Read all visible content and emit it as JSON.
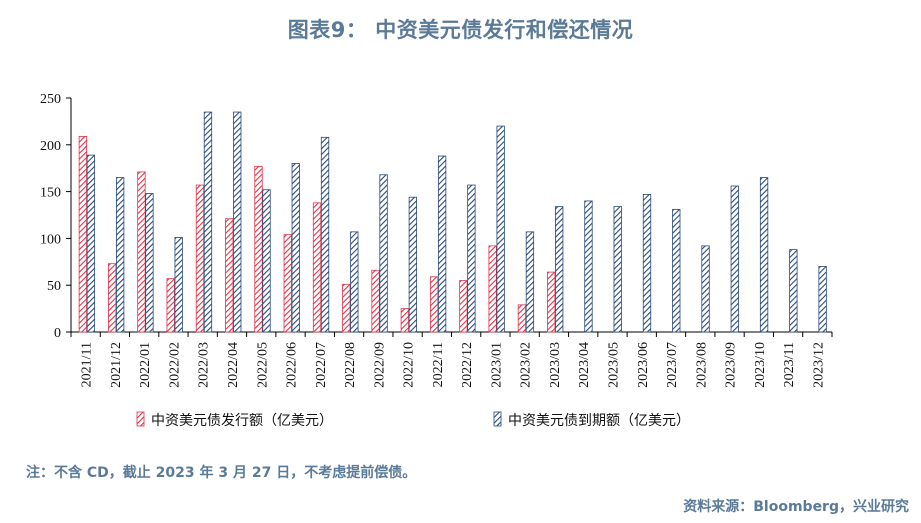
{
  "title": "图表9：  中资美元债发行和偿还情况",
  "note": "注：不含 CD，截止 2023 年 3 月 27 日，不考虑提前偿债。",
  "source": "资料来源：Bloomberg，兴业研究",
  "chart_data": {
    "type": "bar",
    "categories": [
      "2021/11",
      "2021/12",
      "2022/01",
      "2022/02",
      "2022/03",
      "2022/04",
      "2022/05",
      "2022/06",
      "2022/07",
      "2022/08",
      "2022/09",
      "2022/10",
      "2022/11",
      "2022/12",
      "2023/01",
      "2023/02",
      "2023/03",
      "2023/04",
      "2023/05",
      "2023/06",
      "2023/07",
      "2023/08",
      "2023/09",
      "2023/10",
      "2023/11",
      "2023/12"
    ],
    "series": [
      {
        "name": "中资美元债发行额（亿美元）",
        "color": "#e0334a",
        "values": [
          209,
          73,
          171,
          57,
          157,
          121,
          177,
          104,
          138,
          51,
          66,
          25,
          59,
          55,
          92,
          29,
          64,
          null,
          null,
          null,
          null,
          null,
          null,
          null,
          null,
          null
        ]
      },
      {
        "name": "中资美元债到期额（亿美元）",
        "color": "#2a4a7a",
        "values": [
          189,
          165,
          148,
          101,
          235,
          235,
          152,
          180,
          208,
          107,
          168,
          144,
          188,
          157,
          220,
          107,
          134,
          140,
          134,
          147,
          131,
          92,
          156,
          165,
          88,
          70
        ]
      }
    ],
    "ylim": [
      0,
      250
    ],
    "yticks": [
      0,
      50,
      100,
      150,
      200,
      250
    ],
    "legend": "bottom"
  }
}
